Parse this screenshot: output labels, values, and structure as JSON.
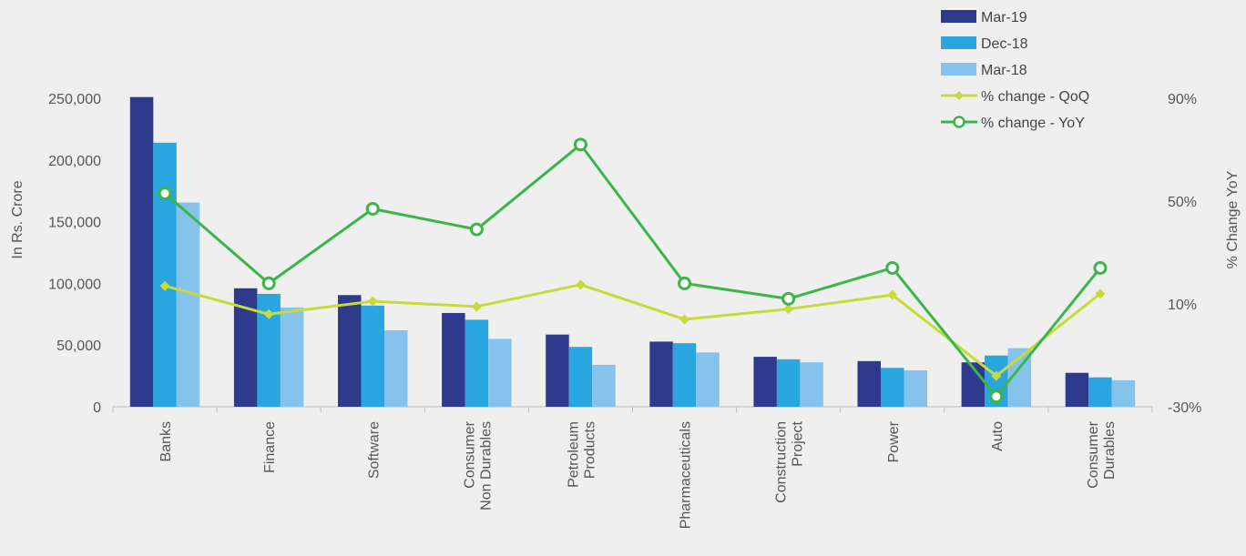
{
  "chart_data": {
    "type": "bar",
    "categories": [
      [
        "Banks"
      ],
      [
        "Finance"
      ],
      [
        "Software"
      ],
      [
        "Consumer",
        "Non Durables"
      ],
      [
        "Petroleum",
        "Products"
      ],
      [
        "Pharmaceuticals"
      ],
      [
        "Construction",
        "Project"
      ],
      [
        "Power"
      ],
      [
        "Auto"
      ],
      [
        "Consumer",
        "Durables"
      ]
    ],
    "series": [
      {
        "name": "Mar-19",
        "kind": "bar",
        "color": "#2e3a8c",
        "values": [
          251000,
          96000,
          90500,
          76000,
          58500,
          52800,
          40500,
          37000,
          36000,
          27500
        ]
      },
      {
        "name": "Dec-18",
        "kind": "bar",
        "color": "#29a6e0",
        "values": [
          214000,
          91500,
          82000,
          70500,
          48500,
          51500,
          38500,
          31500,
          41500,
          23800
        ]
      },
      {
        "name": "Mar-18",
        "kind": "bar",
        "color": "#86c3ec",
        "values": [
          165500,
          80500,
          62000,
          55000,
          34000,
          44000,
          36000,
          29500,
          47500,
          21500
        ]
      },
      {
        "name": "% change - QoQ",
        "kind": "line",
        "axis": "right",
        "color": "#c8d93a",
        "marker": "diamond",
        "values": [
          17,
          6,
          11,
          9,
          17.5,
          4,
          8,
          13.5,
          -18,
          14
        ]
      },
      {
        "name": "% change - YoY",
        "kind": "line",
        "axis": "right",
        "color": "#3bb54a",
        "marker": "circle",
        "values": [
          53,
          18,
          47,
          39,
          72,
          18,
          12,
          24,
          -26,
          24
        ]
      }
    ],
    "ylabel": "In Rs. Crore",
    "y2label": "% Change YoY",
    "ylim": [
      0,
      250000
    ],
    "yticks": [
      0,
      50000,
      100000,
      150000,
      200000,
      250000
    ],
    "ytick_labels": [
      "0",
      "50,000",
      "100,000",
      "150,000",
      "200,000",
      "250,000"
    ],
    "y2lim": [
      -30,
      90
    ],
    "y2ticks": [
      -30,
      10,
      50,
      90
    ],
    "y2tick_labels": [
      "-30%",
      "10%",
      "50%",
      "90%"
    ],
    "grid": false,
    "legend_position": "top-right"
  }
}
